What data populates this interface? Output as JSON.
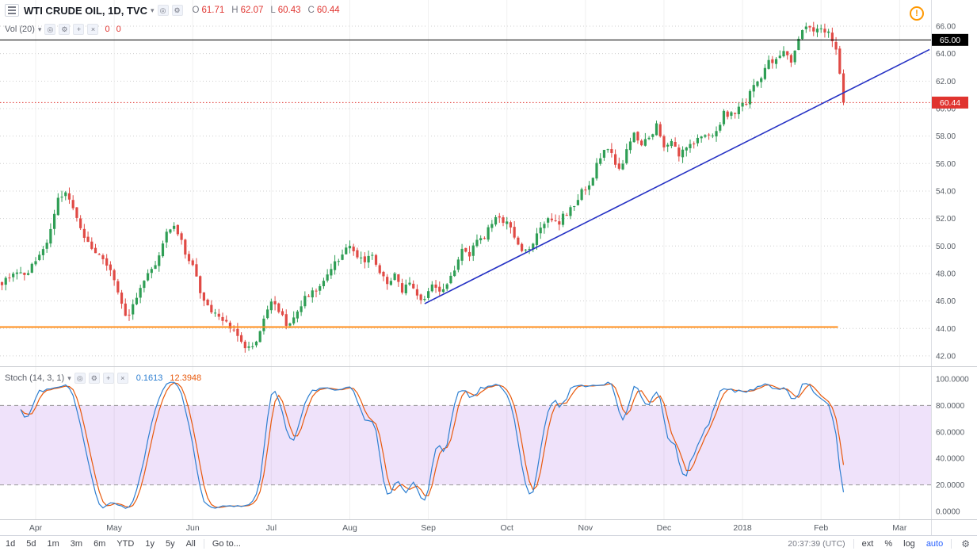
{
  "icons": {
    "caret": "▾",
    "gear": "⚙",
    "eye": "◎",
    "plus": "+",
    "close": "×",
    "warning": "!"
  },
  "header": {
    "title": "WTI CRUDE OIL, 1D, TVC",
    "ohlc": {
      "o_label": "O",
      "o_value": "61.71",
      "h_label": "H",
      "h_value": "62.07",
      "l_label": "L",
      "l_value": "60.43",
      "c_label": "C",
      "c_value": "60.44"
    }
  },
  "volume_row": {
    "label": "Vol (20)",
    "value1": "0",
    "value2": "0"
  },
  "stoch_row": {
    "label": "Stoch (14, 3, 1)",
    "k_value": "0.1613",
    "d_value": "12.3948"
  },
  "toolbar": {
    "ranges": [
      "1d",
      "5d",
      "1m",
      "3m",
      "6m",
      "YTD",
      "1y",
      "5y",
      "All"
    ],
    "goto_label": "Go to...",
    "clock": "20:37:39 (UTC)",
    "ext_label": "ext",
    "percent_label": "%",
    "log_label": "log",
    "auto_label": "auto"
  },
  "colors": {
    "up": "#2f9e55",
    "down": "#e04a45",
    "grid": "#cfcfcf",
    "vgrid": "#f0f0f0",
    "axis_text": "#555b63",
    "trend_blue": "#2531c4",
    "level_black": "#000000",
    "level_red": "#e0342f",
    "level_orange": "#ff8d1a",
    "stoch_k": "#2e7fd1",
    "stoch_d": "#e8590c",
    "band_fill": "rgba(168,93,228,0.18)",
    "band_edge": "#999999",
    "accent_blue": "#2962ff",
    "ohlc_value": "#e0342f",
    "label_text": "#787b86",
    "title_text": "#1b1f27"
  },
  "chart_data": {
    "type": "candlestick",
    "title": "WTI CRUDE OIL, 1D, TVC",
    "price_axis": {
      "min": 42,
      "max": 66,
      "step": 2
    },
    "months": [
      "Apr",
      "May",
      "Jun",
      "Jul",
      "Aug",
      "Sep",
      "Oct",
      "Nov",
      "Dec",
      "2018",
      "Feb",
      "Mar"
    ],
    "days_per_month": 21,
    "close_waypoints": [
      [
        -9,
        47.3
      ],
      [
        -6,
        48.1
      ],
      [
        -3,
        47.8
      ],
      [
        0,
        48.9
      ],
      [
        3,
        50.2
      ],
      [
        6,
        53.3
      ],
      [
        8,
        53.7
      ],
      [
        10,
        52.6
      ],
      [
        13,
        50.6
      ],
      [
        16,
        49.6
      ],
      [
        18,
        49.2
      ],
      [
        20,
        48.3
      ],
      [
        22,
        46.4
      ],
      [
        24,
        44.8
      ],
      [
        26,
        45.6
      ],
      [
        29,
        47.7
      ],
      [
        32,
        48.8
      ],
      [
        35,
        50.9
      ],
      [
        37,
        51.4
      ],
      [
        39,
        50.2
      ],
      [
        42,
        48.4
      ],
      [
        45,
        45.9
      ],
      [
        48,
        44.9
      ],
      [
        51,
        44.4
      ],
      [
        54,
        43.4
      ],
      [
        57,
        42.5
      ],
      [
        59,
        43.1
      ],
      [
        61,
        44.6
      ],
      [
        63,
        46.0
      ],
      [
        65,
        45.2
      ],
      [
        67,
        44.4
      ],
      [
        69,
        44.8
      ],
      [
        72,
        46.2
      ],
      [
        75,
        46.7
      ],
      [
        78,
        48.1
      ],
      [
        81,
        49.0
      ],
      [
        84,
        50.2
      ],
      [
        86,
        49.1
      ],
      [
        88,
        48.8
      ],
      [
        90,
        49.4
      ],
      [
        92,
        48.1
      ],
      [
        94,
        47.2
      ],
      [
        96,
        47.8
      ],
      [
        98,
        46.7
      ],
      [
        100,
        47.4
      ],
      [
        102,
        46.4
      ],
      [
        104,
        45.9
      ],
      [
        106,
        47.2
      ],
      [
        108,
        46.6
      ],
      [
        110,
        47.4
      ],
      [
        112,
        48.4
      ],
      [
        114,
        49.8
      ],
      [
        116,
        49.4
      ],
      [
        118,
        50.2
      ],
      [
        120,
        50.7
      ],
      [
        122,
        51.8
      ],
      [
        124,
        52.1
      ],
      [
        126,
        51.6
      ],
      [
        128,
        50.8
      ],
      [
        130,
        49.4
      ],
      [
        132,
        49.9
      ],
      [
        134,
        50.8
      ],
      [
        136,
        51.5
      ],
      [
        138,
        52.1
      ],
      [
        140,
        51.8
      ],
      [
        142,
        52.4
      ],
      [
        144,
        52.8
      ],
      [
        146,
        54.0
      ],
      [
        148,
        54.4
      ],
      [
        150,
        55.8
      ],
      [
        152,
        57.2
      ],
      [
        154,
        56.8
      ],
      [
        156,
        55.4
      ],
      [
        158,
        56.8
      ],
      [
        160,
        58.1
      ],
      [
        162,
        57.3
      ],
      [
        164,
        57.9
      ],
      [
        166,
        58.8
      ],
      [
        168,
        57.4
      ],
      [
        170,
        57.7
      ],
      [
        172,
        56.3
      ],
      [
        174,
        57.3
      ],
      [
        176,
        57.6
      ],
      [
        178,
        58.2
      ],
      [
        180,
        57.9
      ],
      [
        182,
        58.3
      ],
      [
        184,
        59.7
      ],
      [
        186,
        59.6
      ],
      [
        188,
        60.1
      ],
      [
        190,
        60.5
      ],
      [
        192,
        61.7
      ],
      [
        194,
        62.0
      ],
      [
        196,
        63.6
      ],
      [
        198,
        63.4
      ],
      [
        200,
        64.3
      ],
      [
        202,
        63.6
      ],
      [
        204,
        64.9
      ],
      [
        206,
        66.1
      ],
      [
        208,
        65.6
      ],
      [
        210,
        66.0
      ],
      [
        212,
        65.4
      ],
      [
        214,
        64.3
      ],
      [
        215,
        62.6
      ],
      [
        216,
        60.44
      ]
    ],
    "last_close": 60.44,
    "levels": [
      {
        "label": "65.00",
        "price": 65.0,
        "color": "#000000",
        "style": "solid",
        "width_frac": 1.0
      },
      {
        "label": "60.44",
        "price": 60.44,
        "color": "#e0342f",
        "style": "dotted",
        "width_frac": 1.0
      },
      {
        "label": "",
        "price": 44.1,
        "color": "#ff8d1a",
        "style": "solid",
        "width_frac": 0.9
      }
    ],
    "trendline": {
      "from_day": 104,
      "from_price": 45.8,
      "to_day": 239,
      "to_price": 64.3,
      "color": "#2531c4"
    },
    "indicator": {
      "name": "Stochastic",
      "params": [
        14,
        3,
        1
      ],
      "k_last": 0.1613,
      "d_last": 12.3948,
      "bands": [
        20,
        80
      ],
      "axis": {
        "min": 0,
        "max": 100,
        "step": 20
      }
    }
  }
}
